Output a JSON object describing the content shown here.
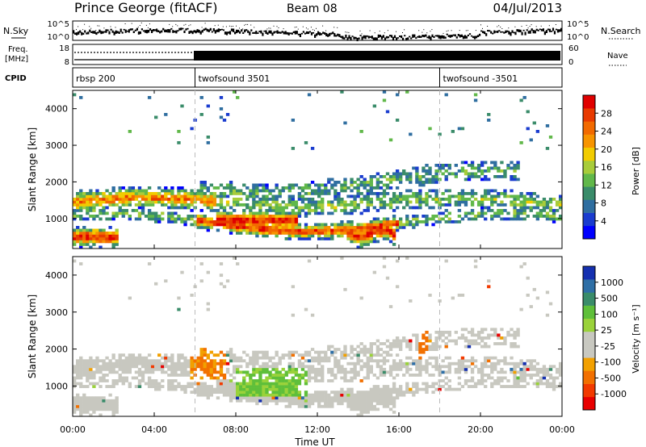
{
  "header": {
    "title": "Prince George (fitACF)",
    "beam": "Beam 08",
    "date": "04/Jul/2013"
  },
  "noise_panel": {
    "left_label": "N.Sky",
    "right_label": "N.Search",
    "left_ticks": [
      "10^5",
      "10^0"
    ],
    "right_ticks": [
      "10^5",
      "10^0"
    ]
  },
  "freq_panel": {
    "left_label_line1": "Freq.",
    "left_label_line2": "[MHz]",
    "left_ticks": [
      "18",
      "8"
    ],
    "right_label": "Nave",
    "right_ticks": [
      "60",
      "0"
    ]
  },
  "cpid": {
    "label": "CPID",
    "modes": [
      {
        "name": "rbsp 200",
        "start_hour": 0
      },
      {
        "name": "twofsound 3501",
        "start_hour": 6
      },
      {
        "name": "twofsound -3501",
        "start_hour": 18
      }
    ]
  },
  "axes": {
    "ylabel": "Slant Range [km]",
    "xlabel": "Time UT",
    "yticks": [
      "4000",
      "3000",
      "2000",
      "1000"
    ],
    "xticks": [
      "00:00",
      "04:00",
      "08:00",
      "12:00",
      "16:00",
      "20:00",
      "00:00"
    ]
  },
  "power_colorbar": {
    "label": "Power [dB]",
    "ticks": [
      "28",
      "24",
      "20",
      "16",
      "12",
      "8",
      "4"
    ],
    "colors": [
      "#0000ff",
      "#1a3ccf",
      "#2f6ea0",
      "#3a8c6a",
      "#61b84a",
      "#a8cc3a",
      "#f2cc00",
      "#f79400",
      "#f26a00",
      "#e83a00",
      "#e00000"
    ]
  },
  "velocity_colorbar": {
    "label": "Velocity [m s⁻¹]",
    "ticks": [
      "1000",
      "500",
      "100",
      "25",
      "-25",
      "-100",
      "-500",
      "-1000"
    ],
    "colors": [
      "#1530b0",
      "#2f6fa6",
      "#3a8c6a",
      "#5fbf3a",
      "#9ad23a",
      "#c8c8c0",
      "#c8c8c0",
      "#f2a000",
      "#f27000",
      "#f23a00",
      "#e80000"
    ]
  },
  "chart_data": {
    "type": "heatmap",
    "x_range_hours": [
      0,
      24
    ],
    "y_range_km": [
      180,
      4500
    ],
    "power_range_db": [
      0,
      30
    ],
    "velocity_range_ms": [
      -1000,
      1000
    ],
    "grid": false,
    "mode_change_hours": [
      6,
      18
    ]
  }
}
